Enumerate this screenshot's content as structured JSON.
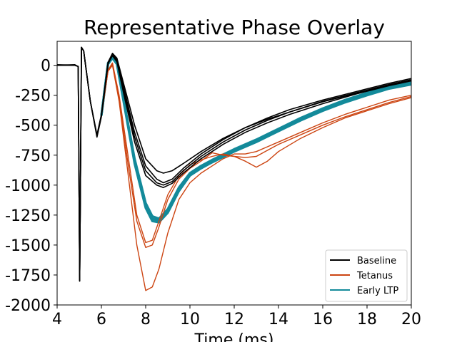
{
  "chart_data": {
    "type": "line",
    "title": "Representative Phase Overlay",
    "xlabel": "Time (ms)",
    "ylabel": "",
    "xlim": [
      4,
      20
    ],
    "ylim": [
      -2000,
      200
    ],
    "xticks": [
      4,
      6,
      8,
      10,
      12,
      14,
      16,
      18,
      20
    ],
    "yticks": [
      0,
      -250,
      -500,
      -750,
      -1000,
      -1250,
      -1500,
      -1750,
      -2000
    ],
    "grid": false,
    "legend_placement": "lower-right",
    "colors": {
      "Baseline": "#000000",
      "Tetanus": "#cc4411",
      "Early LTP": "#138a9a"
    },
    "series": [
      {
        "name": "Baseline",
        "color": "#000000",
        "traces": [
          {
            "x": [
              4.0,
              4.8,
              4.95,
              5.02,
              5.1,
              5.2,
              5.5,
              5.8,
              6.0,
              6.3,
              6.5,
              6.7,
              7.0,
              7.5,
              8.0,
              8.5,
              8.8,
              9.2,
              9.7,
              10.5,
              11.5,
              12.5,
              13.5,
              14.5,
              16.0,
              17.5,
              19.0,
              20.0
            ],
            "y": [
              0,
              0,
              -10,
              -1800,
              150,
              120,
              -300,
              -590,
              -420,
              20,
              90,
              40,
              -200,
              -600,
              -880,
              -980,
              -1000,
              -970,
              -880,
              -760,
              -640,
              -540,
              -460,
              -390,
              -300,
              -230,
              -160,
              -120
            ]
          },
          {
            "x": [
              4.0,
              4.8,
              4.95,
              5.02,
              5.1,
              5.2,
              5.5,
              5.8,
              6.0,
              6.3,
              6.5,
              6.7,
              7.0,
              7.5,
              8.0,
              8.5,
              8.8,
              9.2,
              9.7,
              10.5,
              11.5,
              12.5,
              13.5,
              14.5,
              16.0,
              17.5,
              19.0,
              20.0
            ],
            "y": [
              5,
              0,
              -10,
              -1800,
              150,
              120,
              -300,
              -600,
              -430,
              10,
              95,
              50,
              -180,
              -560,
              -840,
              -950,
              -980,
              -950,
              -860,
              -740,
              -620,
              -520,
              -440,
              -370,
              -290,
              -220,
              -150,
              -110
            ]
          },
          {
            "x": [
              4.0,
              4.8,
              4.95,
              5.02,
              5.1,
              5.2,
              5.5,
              5.8,
              6.0,
              6.3,
              6.5,
              6.7,
              7.0,
              7.5,
              8.0,
              8.5,
              8.8,
              9.2,
              9.7,
              10.5,
              11.5,
              12.5,
              13.5,
              14.5,
              16.0,
              17.5,
              19.0,
              20.0
            ],
            "y": [
              0,
              5,
              -10,
              -1800,
              150,
              120,
              -300,
              -590,
              -420,
              15,
              80,
              30,
              -230,
              -640,
              -920,
              -1000,
              -1020,
              -985,
              -900,
              -780,
              -660,
              -560,
              -480,
              -410,
              -320,
              -240,
              -170,
              -130
            ]
          },
          {
            "x": [
              4.0,
              4.8,
              4.95,
              5.02,
              5.1,
              5.2,
              5.5,
              5.8,
              6.0,
              6.3,
              6.5,
              6.7,
              7.0,
              7.5,
              8.0,
              8.5,
              8.8,
              9.2,
              9.7,
              10.5,
              11.5,
              12.5,
              13.5,
              14.5,
              16.0,
              17.5,
              19.0,
              20.0
            ],
            "y": [
              0,
              0,
              -10,
              -1800,
              150,
              120,
              -300,
              -580,
              -410,
              25,
              100,
              60,
              -150,
              -500,
              -780,
              -880,
              -900,
              -880,
              -820,
              -720,
              -610,
              -520,
              -450,
              -390,
              -305,
              -235,
              -165,
              -125
            ]
          }
        ]
      },
      {
        "name": "Tetanus",
        "color": "#cc4411",
        "traces": [
          {
            "x": [
              6.0,
              6.3,
              6.5,
              6.8,
              7.2,
              7.6,
              8.0,
              8.3,
              8.6,
              9.0,
              9.5,
              10.0,
              10.5,
              11.0,
              11.5,
              12.0,
              12.5,
              13.0,
              13.5,
              14.0,
              15.0,
              16.0,
              17.0,
              18.0,
              19.0,
              20.0
            ],
            "y": [
              -420,
              -50,
              0,
              -300,
              -900,
              -1500,
              -1880,
              -1850,
              -1700,
              -1400,
              -1120,
              -980,
              -900,
              -840,
              -780,
              -740,
              -740,
              -720,
              -680,
              -640,
              -560,
              -480,
              -410,
              -350,
              -290,
              -250
            ]
          },
          {
            "x": [
              6.0,
              6.3,
              6.5,
              6.8,
              7.2,
              7.6,
              8.0,
              8.3,
              8.6,
              9.0,
              9.5,
              10.0,
              10.5,
              11.0,
              11.5,
              12.0,
              12.5,
              13.0,
              13.5,
              14.0,
              15.0,
              16.0,
              17.0,
              18.0,
              19.0,
              20.0
            ],
            "y": [
              -420,
              -40,
              20,
              -250,
              -750,
              -1250,
              -1480,
              -1460,
              -1300,
              -1080,
              -920,
              -830,
              -790,
              -760,
              -740,
              -760,
              -800,
              -850,
              -800,
              -720,
              -610,
              -520,
              -440,
              -380,
              -320,
              -270
            ]
          },
          {
            "x": [
              6.0,
              6.3,
              6.5,
              6.8,
              7.2,
              7.6,
              8.0,
              8.3,
              8.6,
              9.0,
              9.5,
              10.0,
              10.5,
              11.0,
              11.5,
              12.0,
              12.5,
              13.0,
              13.5,
              14.0,
              15.0,
              16.0,
              17.0,
              18.0,
              19.0,
              20.0
            ],
            "y": [
              -420,
              -45,
              10,
              -280,
              -820,
              -1300,
              -1520,
              -1500,
              -1350,
              -1120,
              -950,
              -860,
              -800,
              -730,
              -750,
              -760,
              -770,
              -760,
              -710,
              -660,
              -580,
              -500,
              -430,
              -370,
              -310,
              -260
            ]
          }
        ]
      },
      {
        "name": "Early LTP",
        "color": "#138a9a",
        "traces": [
          {
            "x": [
              6.0,
              6.3,
              6.5,
              6.7,
              7.0,
              7.5,
              8.0,
              8.3,
              8.6,
              9.0,
              9.5,
              10.0,
              10.5,
              11.0,
              12.0,
              13.0,
              14.0,
              15.0,
              16.0,
              17.0,
              18.0,
              19.0,
              20.0
            ],
            "y": [
              -420,
              20,
              70,
              20,
              -280,
              -780,
              -1150,
              -1260,
              -1280,
              -1200,
              -1020,
              -900,
              -840,
              -790,
              -700,
              -620,
              -530,
              -440,
              -360,
              -290,
              -230,
              -180,
              -145
            ]
          },
          {
            "x": [
              6.0,
              6.3,
              6.5,
              6.7,
              7.0,
              7.5,
              8.0,
              8.3,
              8.6,
              9.0,
              9.5,
              10.0,
              10.5,
              11.0,
              12.0,
              13.0,
              14.0,
              15.0,
              16.0,
              17.0,
              18.0,
              19.0,
              20.0
            ],
            "y": [
              -420,
              10,
              60,
              10,
              -300,
              -820,
              -1190,
              -1300,
              -1310,
              -1230,
              -1050,
              -920,
              -860,
              -810,
              -720,
              -640,
              -550,
              -460,
              -380,
              -310,
              -250,
              -195,
              -160
            ]
          },
          {
            "x": [
              6.0,
              6.3,
              6.5,
              6.7,
              7.0,
              7.5,
              8.0,
              8.3,
              8.6,
              9.0,
              9.5,
              10.0,
              10.5,
              11.0,
              12.0,
              13.0,
              14.0,
              15.0,
              16.0,
              17.0,
              18.0,
              19.0,
              20.0
            ],
            "y": [
              -420,
              15,
              65,
              15,
              -290,
              -800,
              -1170,
              -1280,
              -1295,
              -1215,
              -1035,
              -910,
              -850,
              -800,
              -710,
              -630,
              -540,
              -450,
              -370,
              -300,
              -240,
              -188,
              -152
            ]
          }
        ]
      }
    ]
  }
}
